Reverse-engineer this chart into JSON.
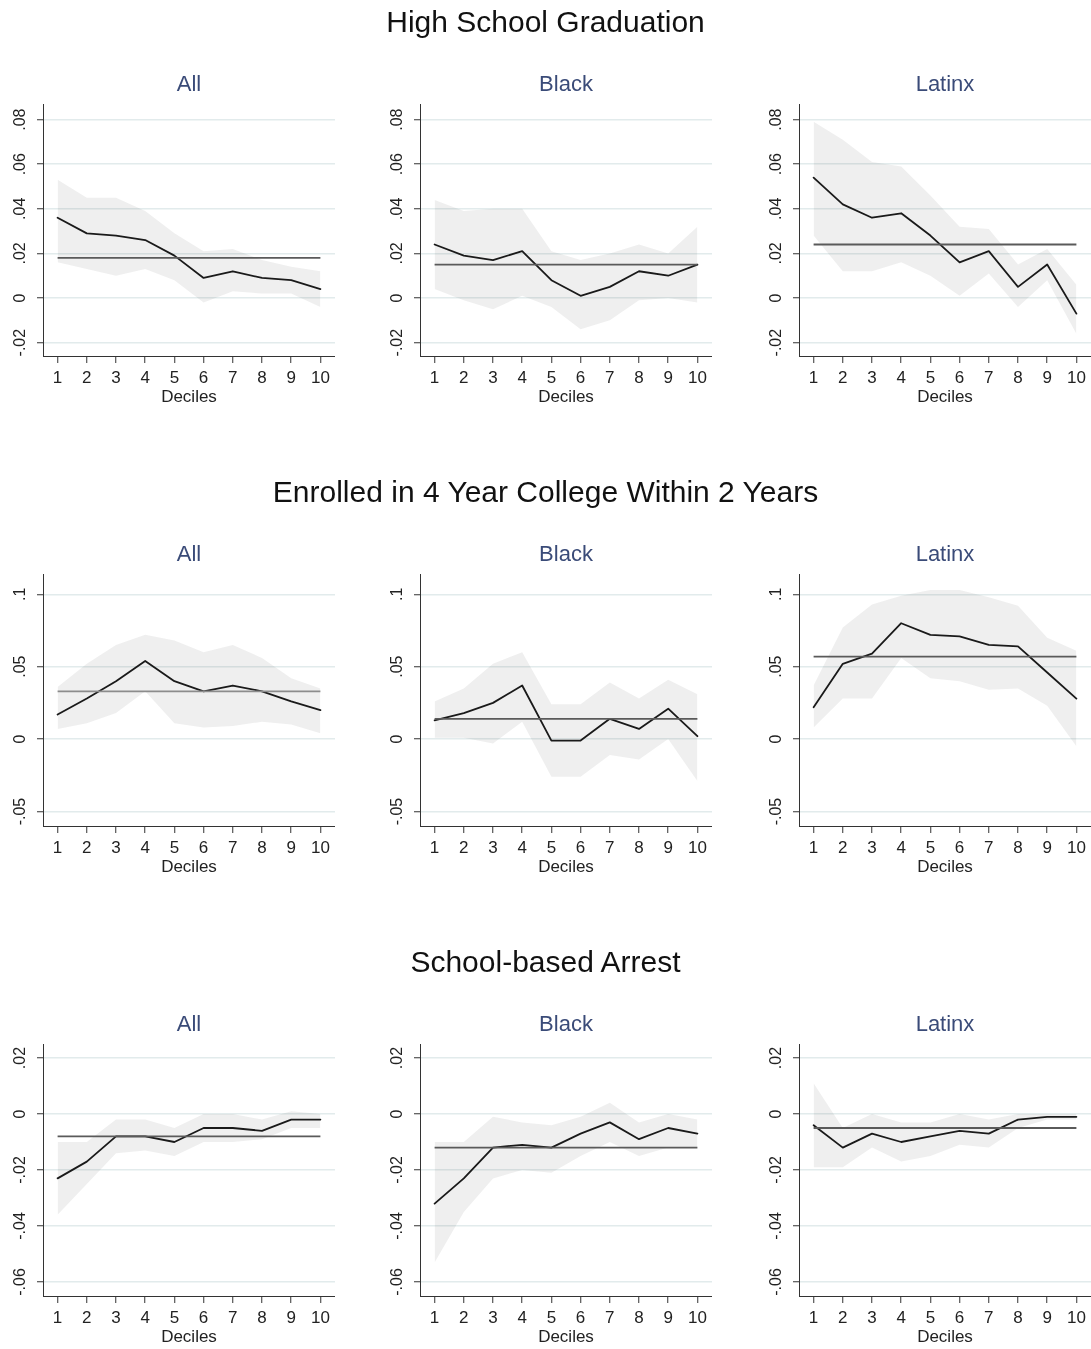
{
  "chart_data": [
    {
      "type": "line",
      "subtitle": "All",
      "xlabel": "Deciles",
      "x": [
        1,
        2,
        3,
        4,
        5,
        6,
        7,
        8,
        9,
        10
      ],
      "xlim": [
        0.5,
        10.5
      ],
      "xticks": [
        1,
        2,
        3,
        4,
        5,
        6,
        7,
        8,
        9,
        10
      ],
      "ylim": [
        -0.026,
        0.087
      ],
      "yticks": [
        {
          "value": -0.02,
          "label": "-.02"
        },
        {
          "value": 0,
          "label": "0"
        },
        {
          "value": 0.02,
          "label": ".02"
        },
        {
          "value": 0.04,
          "label": ".04"
        },
        {
          "value": 0.06,
          "label": ".06"
        },
        {
          "value": 0.08,
          "label": ".08"
        }
      ],
      "grid": "y",
      "series": [
        {
          "color": "#1a1a1a",
          "values": [
            0.036,
            0.029,
            0.028,
            0.026,
            0.019,
            0.009,
            0.012,
            0.009,
            0.008,
            0.004
          ],
          "lower": [
            0.016,
            0.013,
            0.01,
            0.013,
            0.008,
            -0.002,
            0.003,
            0.002,
            0.002,
            -0.004
          ],
          "upper": [
            0.053,
            0.045,
            0.045,
            0.039,
            0.029,
            0.021,
            0.022,
            0.017,
            0.014,
            0.012
          ]
        }
      ],
      "ref_lines": [
        {
          "axis": "y",
          "value": 0.018,
          "color": "#5a5a5a"
        }
      ]
    },
    {
      "type": "line",
      "title": "High School Graduation",
      "subtitle": "Black",
      "xlabel": "Deciles",
      "x": [
        1,
        2,
        3,
        4,
        5,
        6,
        7,
        8,
        9,
        10
      ],
      "xlim": [
        0.5,
        10.5
      ],
      "xticks": [
        1,
        2,
        3,
        4,
        5,
        6,
        7,
        8,
        9,
        10
      ],
      "ylim": [
        -0.026,
        0.087
      ],
      "yticks": [
        {
          "value": -0.02,
          "label": "-.02"
        },
        {
          "value": 0,
          "label": "0"
        },
        {
          "value": 0.02,
          "label": ".02"
        },
        {
          "value": 0.04,
          "label": ".04"
        },
        {
          "value": 0.06,
          "label": ".06"
        },
        {
          "value": 0.08,
          "label": ".08"
        }
      ],
      "grid": "y",
      "series": [
        {
          "color": "#1a1a1a",
          "values": [
            0.024,
            0.019,
            0.017,
            0.021,
            0.008,
            0.001,
            0.005,
            0.012,
            0.01,
            0.015
          ],
          "lower": [
            0.004,
            -0.001,
            -0.005,
            0.001,
            -0.004,
            -0.014,
            -0.01,
            -0.001,
            0.0,
            -0.002
          ],
          "upper": [
            0.044,
            0.039,
            0.04,
            0.04,
            0.021,
            0.017,
            0.02,
            0.024,
            0.02,
            0.032
          ]
        }
      ],
      "ref_lines": [
        {
          "axis": "y",
          "value": 0.015,
          "color": "#5a5a5a"
        }
      ]
    },
    {
      "type": "line",
      "subtitle": "Latinx",
      "xlabel": "Deciles",
      "x": [
        1,
        2,
        3,
        4,
        5,
        6,
        7,
        8,
        9,
        10
      ],
      "xlim": [
        0.5,
        10.5
      ],
      "xticks": [
        1,
        2,
        3,
        4,
        5,
        6,
        7,
        8,
        9,
        10
      ],
      "ylim": [
        -0.026,
        0.087
      ],
      "yticks": [
        {
          "value": -0.02,
          "label": "-.02"
        },
        {
          "value": 0,
          "label": "0"
        },
        {
          "value": 0.02,
          "label": ".02"
        },
        {
          "value": 0.04,
          "label": ".04"
        },
        {
          "value": 0.06,
          "label": ".06"
        },
        {
          "value": 0.08,
          "label": ".08"
        }
      ],
      "grid": "y",
      "series": [
        {
          "color": "#1a1a1a",
          "values": [
            0.054,
            0.042,
            0.036,
            0.038,
            0.028,
            0.016,
            0.021,
            0.005,
            0.015,
            -0.007
          ],
          "lower": [
            0.028,
            0.012,
            0.012,
            0.016,
            0.01,
            0.001,
            0.011,
            -0.004,
            0.008,
            -0.016
          ],
          "upper": [
            0.079,
            0.071,
            0.061,
            0.059,
            0.046,
            0.032,
            0.031,
            0.015,
            0.022,
            0.006
          ]
        }
      ],
      "ref_lines": [
        {
          "axis": "y",
          "value": 0.024,
          "color": "#5a5a5a"
        }
      ]
    },
    {
      "type": "line",
      "subtitle": "All",
      "xlabel": "Deciles",
      "x": [
        1,
        2,
        3,
        4,
        5,
        6,
        7,
        8,
        9,
        10
      ],
      "xlim": [
        0.5,
        10.5
      ],
      "xticks": [
        1,
        2,
        3,
        4,
        5,
        6,
        7,
        8,
        9,
        10
      ],
      "ylim": [
        -0.06,
        0.114
      ],
      "yticks": [
        {
          "value": -0.05,
          "label": "-.05"
        },
        {
          "value": 0,
          "label": "0"
        },
        {
          "value": 0.05,
          "label": ".05"
        },
        {
          "value": 0.1,
          "label": ".1"
        }
      ],
      "grid": "y",
      "series": [
        {
          "color": "#1a1a1a",
          "values": [
            0.017,
            0.028,
            0.04,
            0.054,
            0.04,
            0.033,
            0.037,
            0.033,
            0.026,
            0.02
          ],
          "lower": [
            0.007,
            0.011,
            0.018,
            0.033,
            0.011,
            0.008,
            0.009,
            0.012,
            0.01,
            0.004
          ],
          "upper": [
            0.036,
            0.052,
            0.065,
            0.072,
            0.068,
            0.06,
            0.065,
            0.056,
            0.042,
            0.035
          ]
        }
      ],
      "ref_lines": [
        {
          "axis": "y",
          "value": 0.033,
          "color": "#8c8c8c"
        }
      ]
    },
    {
      "type": "line",
      "title": "Enrolled in 4 Year College Within 2 Years",
      "subtitle": "Black",
      "xlabel": "Deciles",
      "x": [
        1,
        2,
        3,
        4,
        5,
        6,
        7,
        8,
        9,
        10
      ],
      "xlim": [
        0.5,
        10.5
      ],
      "xticks": [
        1,
        2,
        3,
        4,
        5,
        6,
        7,
        8,
        9,
        10
      ],
      "ylim": [
        -0.06,
        0.114
      ],
      "yticks": [
        {
          "value": -0.05,
          "label": "-.05"
        },
        {
          "value": 0,
          "label": "0"
        },
        {
          "value": 0.05,
          "label": ".05"
        },
        {
          "value": 0.1,
          "label": ".1"
        }
      ],
      "grid": "y",
      "series": [
        {
          "color": "#1a1a1a",
          "values": [
            0.013,
            0.018,
            0.025,
            0.037,
            -0.001,
            -0.001,
            0.014,
            0.007,
            0.021,
            0.002
          ],
          "lower": [
            0.001,
            0.001,
            -0.003,
            0.012,
            -0.026,
            -0.026,
            -0.011,
            -0.014,
            0.0,
            -0.029
          ],
          "upper": [
            0.026,
            0.035,
            0.052,
            0.06,
            0.024,
            0.024,
            0.039,
            0.028,
            0.041,
            0.031
          ]
        }
      ],
      "ref_lines": [
        {
          "axis": "y",
          "value": 0.014,
          "color": "#5a5a5a"
        }
      ]
    },
    {
      "type": "line",
      "subtitle": "Latinx",
      "xlabel": "Deciles",
      "x": [
        1,
        2,
        3,
        4,
        5,
        6,
        7,
        8,
        9,
        10
      ],
      "xlim": [
        0.5,
        10.5
      ],
      "xticks": [
        1,
        2,
        3,
        4,
        5,
        6,
        7,
        8,
        9,
        10
      ],
      "ylim": [
        -0.06,
        0.114
      ],
      "yticks": [
        {
          "value": -0.05,
          "label": "-.05"
        },
        {
          "value": 0,
          "label": "0"
        },
        {
          "value": 0.05,
          "label": ".05"
        },
        {
          "value": 0.1,
          "label": ".1"
        }
      ],
      "grid": "y",
      "series": [
        {
          "color": "#1a1a1a",
          "values": [
            0.022,
            0.052,
            0.059,
            0.08,
            0.072,
            0.071,
            0.065,
            0.064,
            0.046,
            0.028
          ],
          "lower": [
            0.008,
            0.028,
            0.028,
            0.056,
            0.042,
            0.04,
            0.034,
            0.035,
            0.023,
            -0.005
          ],
          "upper": [
            0.037,
            0.077,
            0.093,
            0.099,
            0.103,
            0.103,
            0.098,
            0.092,
            0.07,
            0.061
          ]
        }
      ],
      "ref_lines": [
        {
          "axis": "y",
          "value": 0.057,
          "color": "#5a5a5a"
        }
      ]
    },
    {
      "type": "line",
      "subtitle": "All",
      "xlabel": "Deciles",
      "x": [
        1,
        2,
        3,
        4,
        5,
        6,
        7,
        8,
        9,
        10
      ],
      "xlim": [
        0.5,
        10.5
      ],
      "xticks": [
        1,
        2,
        3,
        4,
        5,
        6,
        7,
        8,
        9,
        10
      ],
      "ylim": [
        -0.065,
        0.025
      ],
      "yticks": [
        {
          "value": -0.06,
          "label": "-.06"
        },
        {
          "value": -0.04,
          "label": "-.04"
        },
        {
          "value": -0.02,
          "label": "-.02"
        },
        {
          "value": 0,
          "label": "0"
        },
        {
          "value": 0.02,
          "label": ".02"
        }
      ],
      "grid": "y",
      "series": [
        {
          "color": "#1a1a1a",
          "values": [
            -0.023,
            -0.017,
            -0.008,
            -0.008,
            -0.01,
            -0.005,
            -0.005,
            -0.006,
            -0.002,
            -0.002
          ],
          "lower": [
            -0.036,
            -0.025,
            -0.014,
            -0.013,
            -0.015,
            -0.01,
            -0.01,
            -0.009,
            -0.005,
            -0.005
          ],
          "upper": [
            -0.01,
            -0.01,
            -0.002,
            -0.002,
            -0.005,
            0.0,
            0.0,
            -0.002,
            0.001,
            0.0
          ]
        }
      ],
      "ref_lines": [
        {
          "axis": "y",
          "value": -0.008,
          "color": "#5a5a5a"
        }
      ]
    },
    {
      "type": "line",
      "title": "School-based Arrest",
      "subtitle": "Black",
      "xlabel": "Deciles",
      "x": [
        1,
        2,
        3,
        4,
        5,
        6,
        7,
        8,
        9,
        10
      ],
      "xlim": [
        0.5,
        10.5
      ],
      "xticks": [
        1,
        2,
        3,
        4,
        5,
        6,
        7,
        8,
        9,
        10
      ],
      "ylim": [
        -0.065,
        0.025
      ],
      "yticks": [
        {
          "value": -0.06,
          "label": "-.06"
        },
        {
          "value": -0.04,
          "label": "-.04"
        },
        {
          "value": -0.02,
          "label": "-.02"
        },
        {
          "value": 0,
          "label": "0"
        },
        {
          "value": 0.02,
          "label": ".02"
        }
      ],
      "grid": "y",
      "series": [
        {
          "color": "#1a1a1a",
          "values": [
            -0.032,
            -0.023,
            -0.012,
            -0.011,
            -0.012,
            -0.007,
            -0.003,
            -0.009,
            -0.005,
            -0.007
          ],
          "lower": [
            -0.053,
            -0.035,
            -0.023,
            -0.02,
            -0.021,
            -0.015,
            -0.01,
            -0.015,
            -0.012,
            -0.012
          ],
          "upper": [
            -0.01,
            -0.01,
            -0.001,
            -0.003,
            -0.004,
            -0.001,
            0.004,
            -0.003,
            0.0,
            -0.002
          ]
        }
      ],
      "ref_lines": [
        {
          "axis": "y",
          "value": -0.012,
          "color": "#5a5a5a"
        }
      ]
    },
    {
      "type": "line",
      "subtitle": "Latinx",
      "xlabel": "Deciles",
      "x": [
        1,
        2,
        3,
        4,
        5,
        6,
        7,
        8,
        9,
        10
      ],
      "xlim": [
        0.5,
        10.5
      ],
      "xticks": [
        1,
        2,
        3,
        4,
        5,
        6,
        7,
        8,
        9,
        10
      ],
      "ylim": [
        -0.065,
        0.025
      ],
      "yticks": [
        {
          "value": -0.06,
          "label": "-.06"
        },
        {
          "value": -0.04,
          "label": "-.04"
        },
        {
          "value": -0.02,
          "label": "-.02"
        },
        {
          "value": 0,
          "label": "0"
        },
        {
          "value": 0.02,
          "label": ".02"
        }
      ],
      "grid": "y",
      "series": [
        {
          "color": "#1a1a1a",
          "values": [
            -0.004,
            -0.012,
            -0.007,
            -0.01,
            -0.008,
            -0.006,
            -0.007,
            -0.002,
            -0.001,
            -0.001
          ],
          "lower": [
            -0.019,
            -0.019,
            -0.012,
            -0.017,
            -0.015,
            -0.011,
            -0.012,
            -0.005,
            -0.002,
            -0.002
          ],
          "upper": [
            0.011,
            -0.005,
            0.0,
            -0.003,
            -0.003,
            0.0,
            -0.002,
            0.0,
            0.0,
            0.0
          ]
        }
      ],
      "ref_lines": [
        {
          "axis": "y",
          "value": -0.005,
          "color": "#5a5a5a"
        }
      ]
    }
  ]
}
